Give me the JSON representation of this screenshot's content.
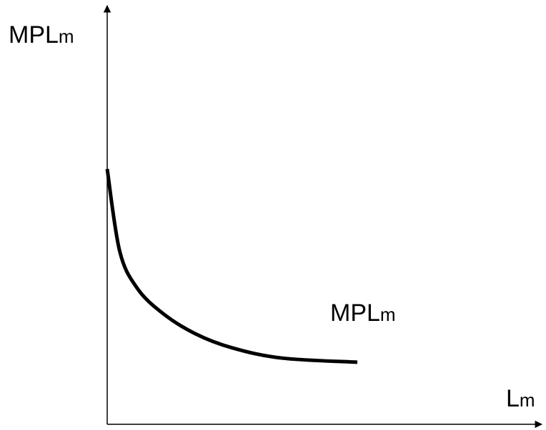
{
  "chart_data": {
    "type": "line",
    "title": "",
    "xlabel": {
      "main": "L",
      "sub": "m"
    },
    "ylabel": {
      "main": "MPL",
      "sub": "m"
    },
    "series": [
      {
        "name": {
          "main": "MPL",
          "sub": "m"
        },
        "shape": "convex-decreasing",
        "values_relative": [
          [
            0.0,
            1.0
          ],
          [
            0.05,
            0.6
          ],
          [
            0.12,
            0.42
          ],
          [
            0.22,
            0.3
          ],
          [
            0.35,
            0.2
          ],
          [
            0.5,
            0.13
          ],
          [
            0.7,
            0.08
          ],
          [
            1.0,
            0.06
          ]
        ]
      }
    ],
    "xticks": [],
    "yticks": [],
    "grid": false,
    "legend": "none",
    "colors": {
      "axis": "#000000",
      "curve": "#000000",
      "background": "#ffffff"
    }
  }
}
